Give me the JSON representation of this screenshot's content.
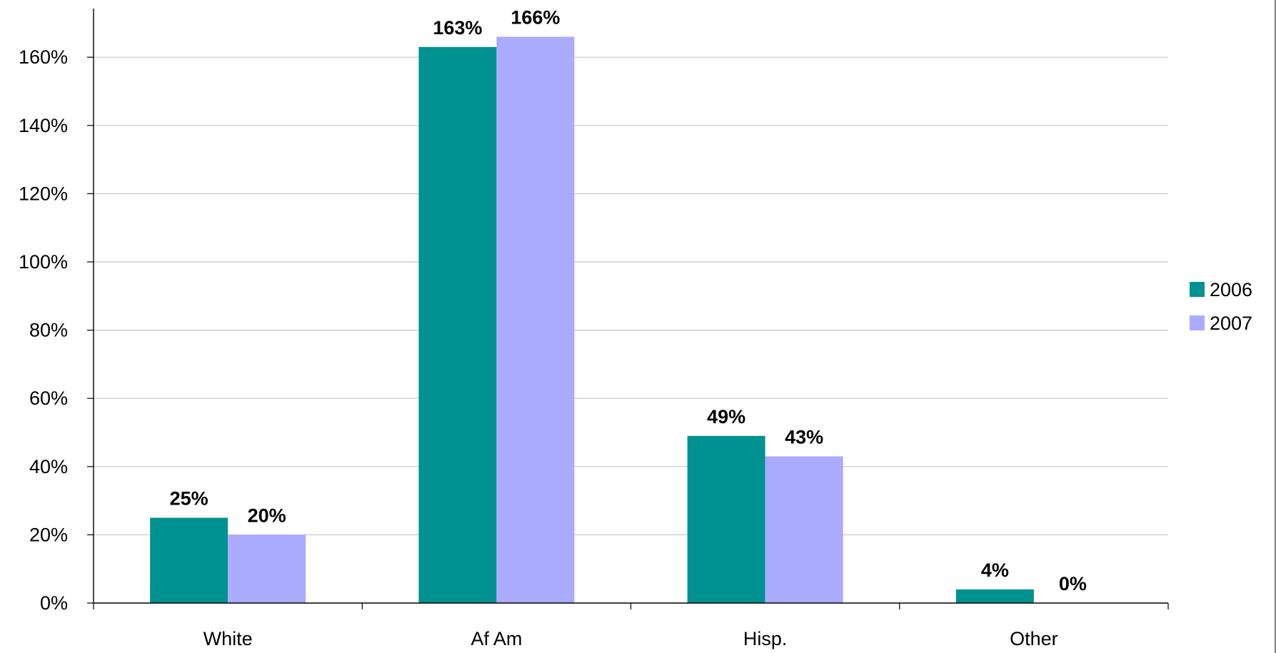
{
  "chart_data": {
    "type": "bar",
    "title": "",
    "xlabel": "",
    "ylabel": "",
    "categories": [
      "White",
      "Af Am",
      "Hisp.",
      "Other"
    ],
    "series": [
      {
        "name": "2006",
        "color": "#009191",
        "values": [
          25,
          163,
          49,
          4
        ],
        "labels": [
          "25%",
          "163%",
          "49%",
          "4%"
        ]
      },
      {
        "name": "2007",
        "color": "#aaaaff",
        "values": [
          20,
          166,
          43,
          0
        ],
        "labels": [
          "20%",
          "166%",
          "43%",
          "0%"
        ]
      }
    ],
    "ylim": [
      0,
      160
    ],
    "yticks": [
      0,
      20,
      40,
      60,
      80,
      100,
      120,
      140,
      160
    ],
    "ytick_labels": [
      "0%",
      "20%",
      "40%",
      "60%",
      "80%",
      "100%",
      "120%",
      "140%",
      "160%"
    ],
    "grid": true,
    "legend_position": "right"
  }
}
